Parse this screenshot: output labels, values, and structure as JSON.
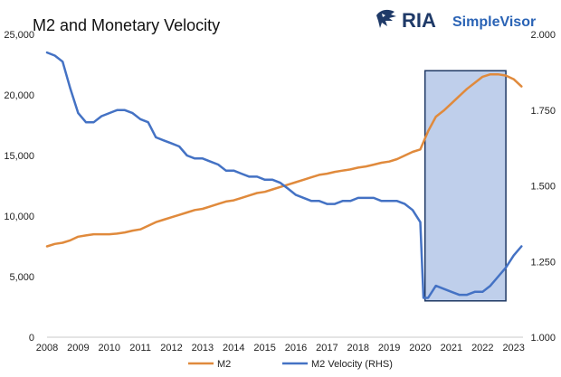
{
  "chart_data": {
    "type": "line",
    "title": "M2 and Monetary Velocity",
    "x_ticks": [
      "2008",
      "2009",
      "2010",
      "2011",
      "2012",
      "2013",
      "2014",
      "2015",
      "2016",
      "2017",
      "2018",
      "2019",
      "2020",
      "2021",
      "2022",
      "2023"
    ],
    "xlim": [
      2008,
      2023.3
    ],
    "left_axis": {
      "ylim": [
        0,
        25000
      ],
      "ticks": [
        "0",
        "5,000",
        "10,000",
        "15,000",
        "20,000",
        "25,000"
      ]
    },
    "right_axis": {
      "ylim": [
        1.0,
        2.0
      ],
      "ticks": [
        "1.000",
        "1.250",
        "1.500",
        "1.750",
        "2.000"
      ]
    },
    "grid": false,
    "legend_position": "bottom",
    "series": [
      {
        "name": "M2",
        "axis": "left",
        "color": "#E08A3C",
        "x": [
          2008.0,
          2008.25,
          2008.5,
          2008.75,
          2009.0,
          2009.25,
          2009.5,
          2009.75,
          2010.0,
          2010.25,
          2010.5,
          2010.75,
          2011.0,
          2011.25,
          2011.5,
          2011.75,
          2012.0,
          2012.25,
          2012.5,
          2012.75,
          2013.0,
          2013.25,
          2013.5,
          2013.75,
          2014.0,
          2014.25,
          2014.5,
          2014.75,
          2015.0,
          2015.25,
          2015.5,
          2015.75,
          2016.0,
          2016.25,
          2016.5,
          2016.75,
          2017.0,
          2017.25,
          2017.5,
          2017.75,
          2018.0,
          2018.25,
          2018.5,
          2018.75,
          2019.0,
          2019.25,
          2019.5,
          2019.75,
          2020.0,
          2020.25,
          2020.5,
          2020.75,
          2021.0,
          2021.25,
          2021.5,
          2021.75,
          2022.0,
          2022.25,
          2022.5,
          2022.75,
          2023.0,
          2023.25
        ],
        "values": [
          7500,
          7700,
          7800,
          8000,
          8300,
          8400,
          8500,
          8500,
          8500,
          8550,
          8650,
          8800,
          8900,
          9200,
          9500,
          9700,
          9900,
          10100,
          10300,
          10500,
          10600,
          10800,
          11000,
          11200,
          11300,
          11500,
          11700,
          11900,
          12000,
          12200,
          12400,
          12600,
          12800,
          13000,
          13200,
          13400,
          13500,
          13650,
          13750,
          13850,
          14000,
          14100,
          14250,
          14400,
          14500,
          14700,
          15000,
          15300,
          15500,
          17000,
          18200,
          18700,
          19300,
          19900,
          20500,
          21000,
          21500,
          21700,
          21700,
          21600,
          21300,
          20700
        ]
      },
      {
        "name": "M2 Velocity (RHS)",
        "axis": "right",
        "color": "#4472C4",
        "x": [
          2008.0,
          2008.25,
          2008.5,
          2008.75,
          2009.0,
          2009.25,
          2009.5,
          2009.75,
          2010.0,
          2010.25,
          2010.5,
          2010.75,
          2011.0,
          2011.25,
          2011.5,
          2011.75,
          2012.0,
          2012.25,
          2012.5,
          2012.75,
          2013.0,
          2013.25,
          2013.5,
          2013.75,
          2014.0,
          2014.25,
          2014.5,
          2014.75,
          2015.0,
          2015.25,
          2015.5,
          2015.75,
          2016.0,
          2016.25,
          2016.5,
          2016.75,
          2017.0,
          2017.25,
          2017.5,
          2017.75,
          2018.0,
          2018.25,
          2018.5,
          2018.75,
          2019.0,
          2019.25,
          2019.5,
          2019.75,
          2020.0,
          2020.1,
          2020.25,
          2020.5,
          2020.75,
          2021.0,
          2021.25,
          2021.5,
          2021.75,
          2022.0,
          2022.25,
          2022.5,
          2022.75,
          2023.0,
          2023.25
        ],
        "values": [
          1.94,
          1.93,
          1.91,
          1.82,
          1.74,
          1.71,
          1.71,
          1.73,
          1.74,
          1.75,
          1.75,
          1.74,
          1.72,
          1.71,
          1.66,
          1.65,
          1.64,
          1.63,
          1.6,
          1.59,
          1.59,
          1.58,
          1.57,
          1.55,
          1.55,
          1.54,
          1.53,
          1.53,
          1.52,
          1.52,
          1.51,
          1.49,
          1.47,
          1.46,
          1.45,
          1.45,
          1.44,
          1.44,
          1.45,
          1.45,
          1.46,
          1.46,
          1.46,
          1.45,
          1.45,
          1.45,
          1.44,
          1.42,
          1.38,
          1.13,
          1.13,
          1.17,
          1.16,
          1.15,
          1.14,
          1.14,
          1.15,
          1.15,
          1.17,
          1.2,
          1.23,
          1.27,
          1.3
        ]
      }
    ],
    "highlight_region": {
      "x_start": 2020.15,
      "x_end": 2022.75,
      "y_start": 3000,
      "y_end": 22000
    }
  },
  "brand": {
    "main": "RIA",
    "sub": "SimpleVisor",
    "logo_icon": "eagle-logo-icon",
    "logo_color": "#1f3a68"
  }
}
